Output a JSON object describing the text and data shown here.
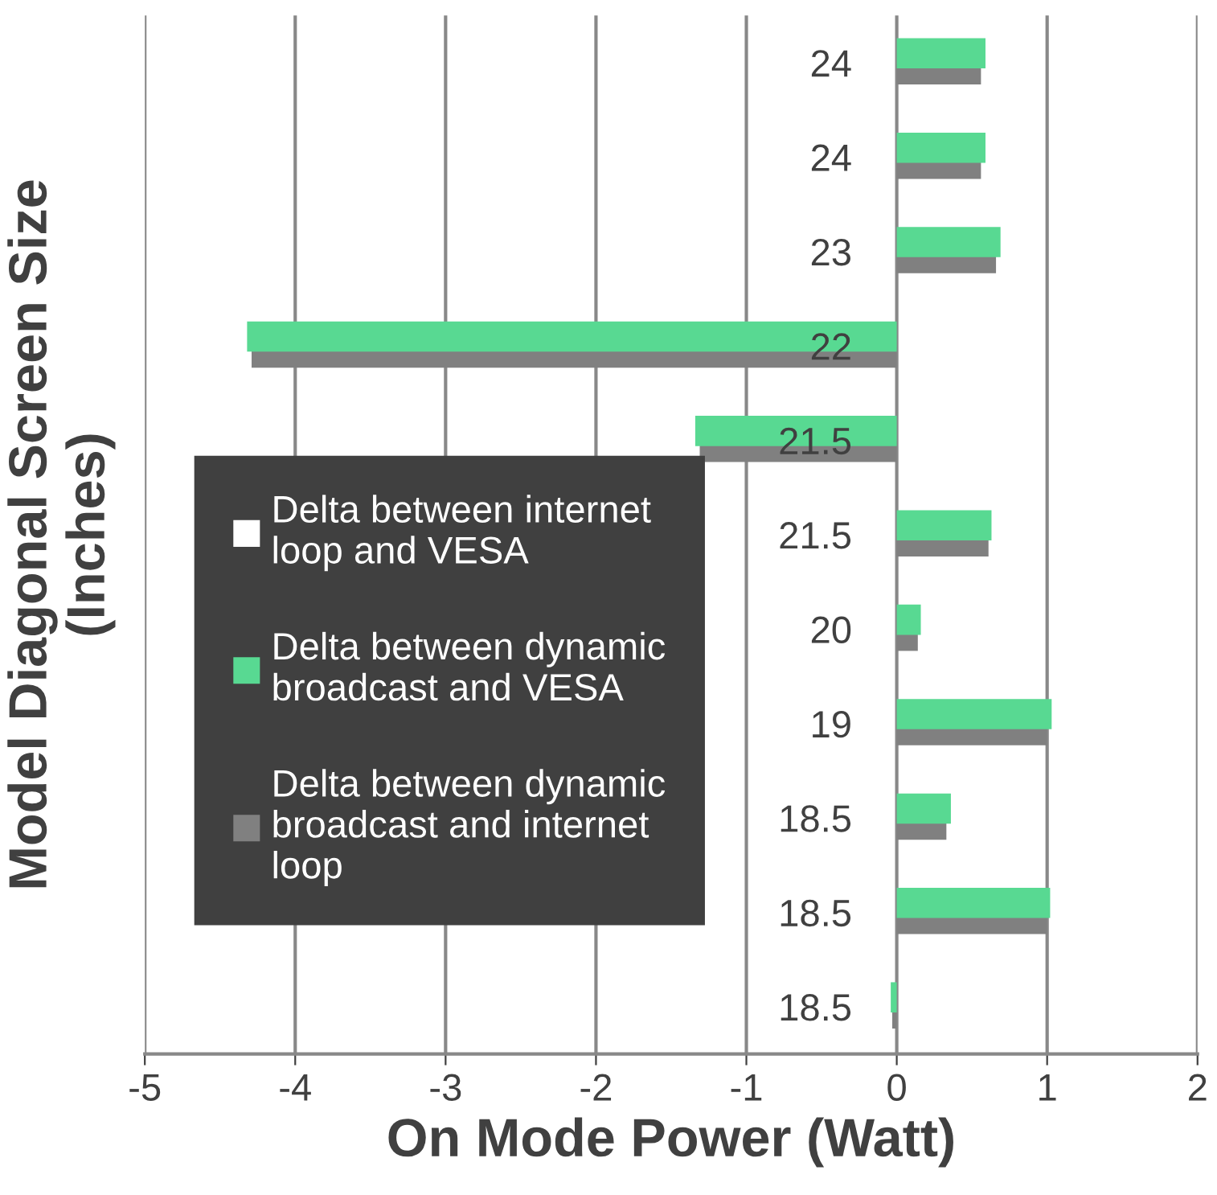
{
  "chart_data": {
    "type": "bar",
    "orientation": "horizontal",
    "xlabel": "On Mode Power (Watt)",
    "ylabel": "Model Diagonal Screen Size\n(Inches)",
    "categories": [
      "24",
      "24",
      "23",
      "22",
      "21.5",
      "21.5",
      "20",
      "19",
      "18.5",
      "18.5",
      "18.5"
    ],
    "series": [
      {
        "name": "Delta between internet loop and VESA",
        "color": "#ffffff",
        "values": [
          null,
          null,
          null,
          null,
          null,
          null,
          null,
          null,
          null,
          null,
          null
        ]
      },
      {
        "name": "Delta between dynamic broadcast and VESA",
        "color": "#58d992",
        "values": [
          0.59,
          0.59,
          0.69,
          -4.32,
          -1.34,
          0.63,
          0.16,
          1.03,
          0.36,
          1.02,
          -0.04
        ]
      },
      {
        "name": "Delta between dynamic broadcast and internet loop",
        "color": "#808080",
        "values": [
          0.56,
          0.56,
          0.66,
          -4.29,
          -1.31,
          0.61,
          0.14,
          1.0,
          0.33,
          1.0,
          -0.03
        ]
      }
    ],
    "xlim": [
      -5,
      2
    ],
    "xticks": [
      -5,
      -4,
      -3,
      -2,
      -1,
      0,
      1,
      2
    ],
    "grid": "x",
    "legend": "left"
  }
}
